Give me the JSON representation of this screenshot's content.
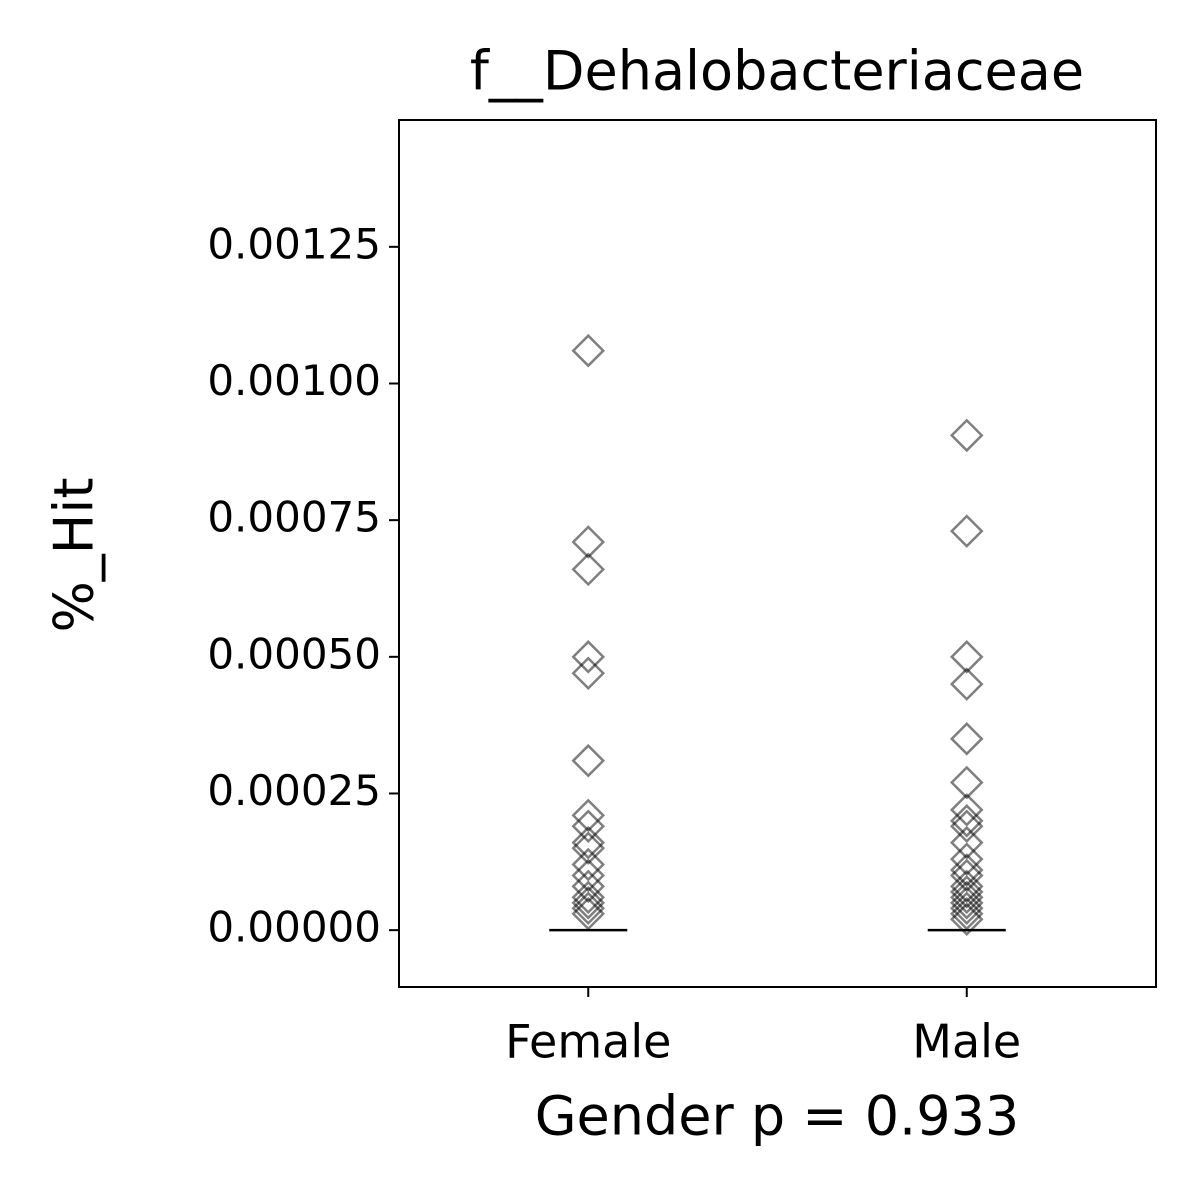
{
  "chart_data": {
    "type": "strip",
    "title": "f__Dehalobacteriaceae",
    "xlabel": "Gender p = 0.933",
    "ylabel": "%_Hit",
    "categories": [
      "Female",
      "Male"
    ],
    "values": [
      [
        0.00106,
        0.00071,
        0.00066,
        0.0005,
        0.00047,
        0.00031,
        0.00021,
        0.00019,
        0.00016,
        0.00015,
        0.00012,
        0.0001,
        8e-05,
        6e-05,
        5e-05,
        4e-05,
        3e-05
      ],
      [
        0.000905,
        0.00073,
        0.0005,
        0.00045,
        0.00035,
        0.00027,
        0.00022,
        0.0002,
        0.00019,
        0.00016,
        0.00013,
        0.00011,
        0.0001,
        8e-05,
        7e-05,
        6e-05,
        5e-05,
        4e-05,
        3e-05,
        2e-05
      ]
    ],
    "medians": [
      0,
      0
    ],
    "color": "#000000",
    "alpha": 0.5,
    "marker": "diamond",
    "ylim": [
      -0.000104,
      0.001482
    ],
    "yticks": [
      {
        "value": 0,
        "label": "0.00000"
      },
      {
        "value": 0.00025,
        "label": "0.00025"
      },
      {
        "value": 0.0005,
        "label": "0.00050"
      },
      {
        "value": 0.00075,
        "label": "0.00075"
      },
      {
        "value": 0.001,
        "label": "0.00100"
      },
      {
        "value": 0.00125,
        "label": "0.00125"
      }
    ]
  }
}
